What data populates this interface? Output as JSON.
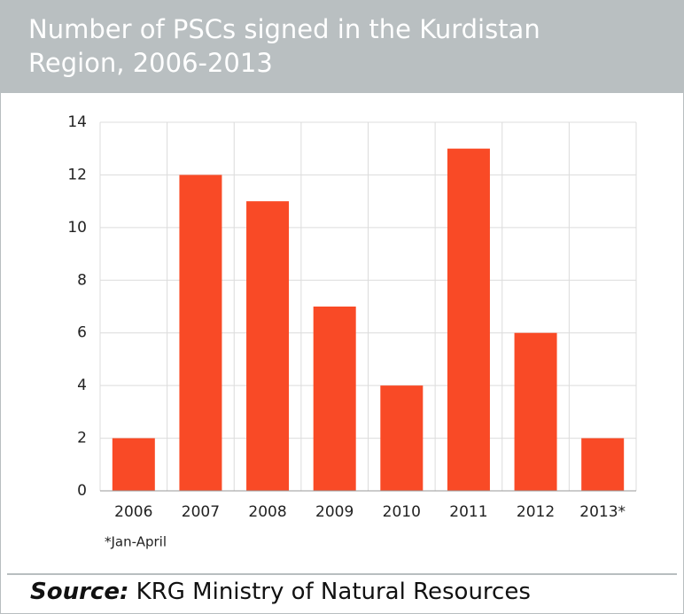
{
  "chart_data": {
    "type": "bar",
    "title": "Number of PSCs signed in the Kurdistan Region, 2006-2013",
    "categories": [
      "2006",
      "2007",
      "2008",
      "2009",
      "2010",
      "2011",
      "2012",
      "2013*"
    ],
    "values": [
      2,
      12,
      11,
      7,
      4,
      13,
      6,
      2
    ],
    "color": "#f94a26",
    "ylim": [
      0,
      14
    ],
    "yticks": [
      0,
      2,
      4,
      6,
      8,
      10,
      12,
      14
    ],
    "grid": true,
    "footnote": "*Jan-April",
    "source_label": "Source:",
    "source": "KRG Ministry of Natural Resources"
  }
}
